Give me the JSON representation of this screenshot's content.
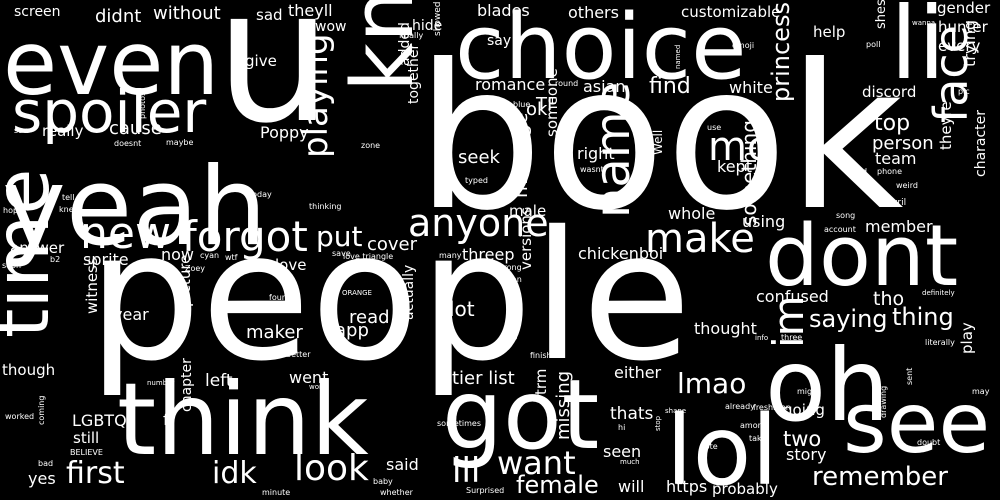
{
  "colors": {
    "background": "#000000",
    "text": "#ffffff"
  },
  "words": [
    "book",
    "people",
    "u",
    "yeah",
    "think",
    "choice",
    "even",
    "oh",
    "got",
    "lol",
    "see",
    "dont",
    "know",
    "time",
    "li",
    "spoiler",
    "new",
    "forgot",
    "anyone",
    "face",
    "name",
    "make",
    "mc",
    "im",
    "first",
    "look",
    "idk",
    "ill",
    "want",
    "lmao",
    "remember",
    "female",
    "playing",
    "put",
    "thing",
    "saying",
    "princess",
    "something",
    "team",
    "person",
    "top",
    "kept",
    "find",
    "white",
    "ok",
    "romance",
    "asian",
    "TF",
    "seek",
    "right",
    "someone",
    "together",
    "cause",
    "really",
    "Poppy",
    "didnt",
    "without",
    "screen",
    "sad",
    "theyll",
    "wow",
    "blades",
    "others",
    "customizable",
    "gender",
    "hunter",
    "every",
    "trying",
    "discord",
    "help",
    "say",
    "added",
    "hide",
    "give",
    "cover",
    "message",
    "threep",
    "chickenboi",
    "answer",
    "sprite",
    "now",
    "love",
    "member",
    "using",
    "character",
    "theyre",
    "whole",
    "male",
    "versions",
    "confused",
    "tho",
    "maker",
    "read",
    "app",
    "lot",
    "year",
    "picture",
    "witness",
    "left",
    "went",
    "thought",
    "actually",
    "tier list",
    "either",
    "going",
    "two",
    "trm",
    "thats",
    "missing",
    "seen",
    "story",
    "chapter",
    "LGBTQ",
    "f",
    "still",
    "yes",
    "though",
    "said",
    "will",
    "https",
    "probably",
    "play",
    "Well",
    "shes",
    "finally",
    "showed",
    "round",
    "named",
    "emoji",
    "poll",
    "wanna",
    "blue",
    "photos",
    "saw",
    "doesnt",
    "maybe",
    "zone",
    "wasnt",
    "use",
    "pic",
    "god",
    "phone",
    "weird",
    "tell",
    "knew",
    "hope",
    "today",
    "thinking",
    "typed",
    "Tyril",
    "song",
    "account",
    "soon",
    "b2",
    "cyan",
    "wtf",
    "Zoey",
    "save",
    "love triangle",
    "many",
    "wrong",
    "join",
    "man",
    "ORANGE",
    "four",
    "definitely",
    "different",
    "info",
    "three",
    "literally",
    "full",
    "better",
    "work",
    "finish",
    "number",
    "might",
    "sent",
    "may",
    "freshman",
    "already",
    "shane",
    "drawing",
    "worked",
    "coming",
    "sometimes",
    "hi",
    "stop",
    "among",
    "take",
    "doubt",
    "bad",
    "BELIEVE",
    "vote",
    "much",
    "baby",
    "minute",
    "whether",
    "Surprised"
  ]
}
